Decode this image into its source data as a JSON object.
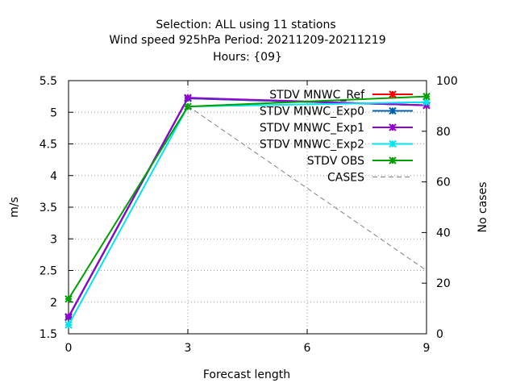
{
  "chart_data": {
    "type": "line",
    "title_lines": [
      "Selection: ALL using    11 stations",
      "Wind speed 925hPa   Period: 20211209-20211219",
      "Hours: {09}"
    ],
    "xlabel": "Forecast length",
    "ylabel": "m/s",
    "y2label": "No cases",
    "x": [
      0,
      3,
      6,
      9
    ],
    "xlim": [
      0,
      9
    ],
    "xticks": [
      "0",
      "3",
      "6",
      "9"
    ],
    "ylim": [
      1.5,
      5.5
    ],
    "yticks": [
      "1.5",
      "2",
      "2.5",
      "3",
      "3.5",
      "4",
      "4.5",
      "5",
      "5.5"
    ],
    "y2lim": [
      0,
      100
    ],
    "y2ticks": [
      "0",
      "20",
      "40",
      "60",
      "80",
      "100"
    ],
    "grid": true,
    "legend_position": "top-right",
    "series": [
      {
        "name": "STDV MNWC_Ref",
        "color": "#ff0000",
        "axis": "y",
        "x": [
          0,
          3,
          9
        ],
        "values": [
          1.76,
          5.22,
          5.11
        ],
        "marker": "x-star",
        "dashed": false
      },
      {
        "name": "STDV MNWC_Exp0",
        "color": "#0060ad",
        "axis": "y",
        "x": [
          0,
          3,
          9
        ],
        "values": [
          1.76,
          5.22,
          5.11
        ],
        "marker": "x-star",
        "dashed": false
      },
      {
        "name": "STDV MNWC_Exp1",
        "color": "#9400d3",
        "axis": "y",
        "x": [
          0,
          3,
          9
        ],
        "values": [
          1.77,
          5.23,
          5.11
        ],
        "marker": "x-star",
        "dashed": false
      },
      {
        "name": "STDV MNWC_Exp2",
        "color": "#00e5ee",
        "axis": "y",
        "x": [
          0,
          3,
          9
        ],
        "values": [
          1.64,
          5.09,
          5.16
        ],
        "marker": "x-star",
        "dashed": false
      },
      {
        "name": "STDV OBS",
        "color": "#00a000",
        "axis": "y",
        "x": [
          0,
          3,
          9
        ],
        "values": [
          2.05,
          5.09,
          5.25
        ],
        "marker": "x-star",
        "dashed": false
      },
      {
        "name": "CASES",
        "color": "#808080",
        "axis": "y2",
        "x": [
          0,
          3,
          9
        ],
        "values": [
          null,
          90,
          25
        ],
        "marker": "none",
        "dashed": true
      }
    ]
  }
}
